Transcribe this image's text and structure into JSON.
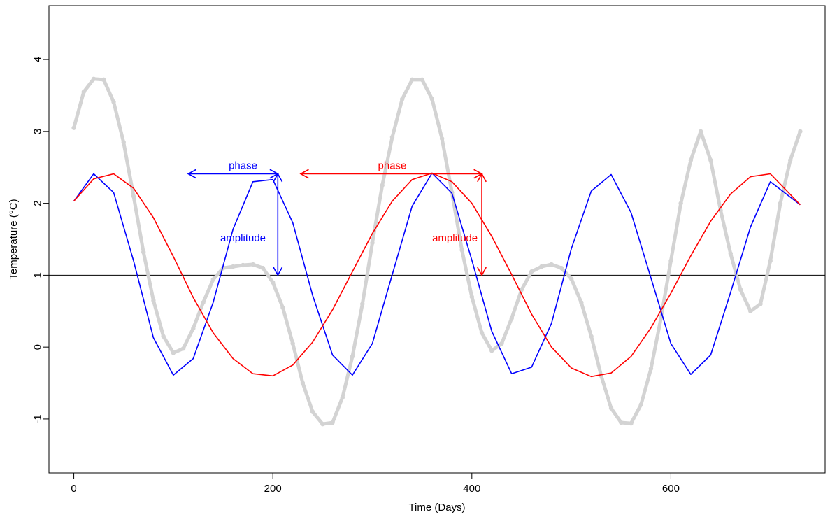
{
  "chart_data": {
    "type": "line",
    "title": "",
    "xlabel": "Time (Days)",
    "ylabel": "Temperature (°C)",
    "xlim": [
      -25,
      755
    ],
    "ylim": [
      -1.75,
      4.75
    ],
    "xticks": [
      0,
      200,
      400,
      600
    ],
    "yticks": [
      -1,
      0,
      1,
      2,
      3,
      4
    ],
    "grid": false,
    "legend": "none",
    "reference_line": {
      "y": 1,
      "color": "#000000"
    },
    "series": [
      {
        "style": "line",
        "color": "#0000ff",
        "x": [
          0,
          20,
          40,
          60,
          80,
          100,
          120,
          140,
          160,
          180,
          200,
          220,
          240,
          260,
          280,
          300,
          320,
          340,
          360,
          380,
          400,
          420,
          440,
          460,
          480,
          500,
          520,
          540,
          560,
          580,
          600,
          620,
          640,
          660,
          680,
          700,
          730
        ],
        "y": [
          2.03,
          2.41,
          2.15,
          1.2,
          0.13,
          -0.39,
          -0.16,
          0.62,
          1.64,
          2.3,
          2.33,
          1.73,
          0.72,
          -0.11,
          -0.39,
          0.05,
          1.01,
          1.96,
          2.42,
          2.14,
          1.21,
          0.22,
          -0.37,
          -0.28,
          0.33,
          1.37,
          2.17,
          2.4,
          1.87,
          0.96,
          0.05,
          -0.38,
          -0.11,
          0.76,
          1.67,
          2.3,
          1.98
        ]
      },
      {
        "style": "line",
        "color": "#ff0000",
        "x": [
          0,
          20,
          40,
          60,
          80,
          100,
          120,
          140,
          160,
          180,
          200,
          220,
          240,
          260,
          280,
          300,
          320,
          340,
          360,
          380,
          400,
          420,
          440,
          460,
          480,
          500,
          520,
          540,
          560,
          580,
          600,
          620,
          640,
          660,
          680,
          700,
          730
        ],
        "y": [
          2.03,
          2.34,
          2.41,
          2.21,
          1.8,
          1.26,
          0.69,
          0.2,
          -0.16,
          -0.37,
          -0.4,
          -0.25,
          0.07,
          0.52,
          1.05,
          1.58,
          2.03,
          2.33,
          2.42,
          2.3,
          2.0,
          1.54,
          1.01,
          0.46,
          0.0,
          -0.29,
          -0.41,
          -0.36,
          -0.13,
          0.27,
          0.75,
          1.27,
          1.75,
          2.13,
          2.37,
          2.41,
          1.98
        ]
      },
      {
        "style": "points",
        "color": "#d3d3d3",
        "x": [
          0,
          10,
          20,
          30,
          40,
          50,
          60,
          70,
          80,
          90,
          100,
          110,
          120,
          130,
          140,
          150,
          160,
          170,
          180,
          190,
          200,
          210,
          220,
          230,
          240,
          250,
          260,
          270,
          280,
          290,
          300,
          310,
          320,
          330,
          340,
          350,
          360,
          370,
          380,
          390,
          400,
          410,
          420,
          430,
          440,
          450,
          460,
          470,
          480,
          490,
          500,
          510,
          520,
          530,
          540,
          550,
          560,
          570,
          580,
          590,
          600,
          610,
          620,
          630,
          640,
          650,
          660,
          670,
          680,
          690,
          700,
          710,
          720,
          730
        ],
        "y": [
          3.05,
          3.55,
          3.73,
          3.72,
          3.41,
          2.85,
          2.1,
          1.32,
          0.65,
          0.15,
          -0.08,
          -0.02,
          0.26,
          0.62,
          0.94,
          1.1,
          1.12,
          1.14,
          1.15,
          1.1,
          0.9,
          0.55,
          0.05,
          -0.5,
          -0.9,
          -1.07,
          -1.05,
          -0.7,
          -0.13,
          0.6,
          1.45,
          2.25,
          2.92,
          3.45,
          3.72,
          3.72,
          3.45,
          2.9,
          2.15,
          1.35,
          0.7,
          0.2,
          -0.05,
          0.05,
          0.4,
          0.8,
          1.05,
          1.12,
          1.15,
          1.1,
          0.95,
          0.62,
          0.15,
          -0.4,
          -0.85,
          -1.05,
          -1.06,
          -0.8,
          -0.3,
          0.4,
          1.2,
          2.0,
          2.6,
          3.0,
          2.6,
          1.9,
          1.3,
          0.8,
          0.5,
          0.6,
          1.2,
          2.0,
          2.6,
          3.0
        ]
      }
    ],
    "annotations": [
      {
        "text": "phase",
        "color": "#0000ff",
        "x": 170,
        "y": 2.48,
        "type": "double-arrow",
        "from": [
          115,
          2.41
        ],
        "to": [
          205,
          2.41
        ]
      },
      {
        "text": "amplitude",
        "color": "#0000ff",
        "x": 170,
        "y": 1.47,
        "type": "double-arrow",
        "from": [
          205,
          2.41
        ],
        "to": [
          205,
          1.0
        ]
      },
      {
        "text": "phase",
        "color": "#ff0000",
        "x": 320,
        "y": 2.48,
        "type": "double-arrow",
        "from": [
          228,
          2.41
        ],
        "to": [
          410,
          2.41
        ]
      },
      {
        "text": "amplitude",
        "color": "#ff0000",
        "x": 383,
        "y": 1.47,
        "type": "double-arrow",
        "from": [
          410,
          2.41
        ],
        "to": [
          410,
          1.0
        ]
      }
    ]
  }
}
